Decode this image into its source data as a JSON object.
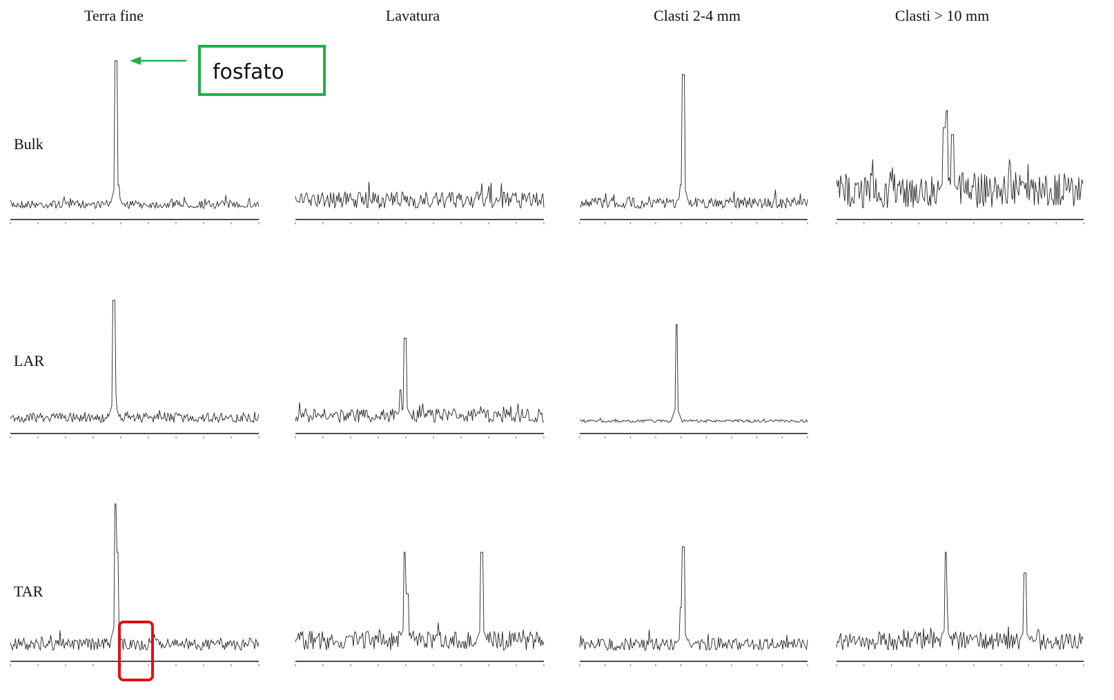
{
  "columns": [
    "Terra fine",
    "Lavatura",
    "Clasti 2-4 mm",
    "Clasti > 10 mm"
  ],
  "rows": [
    "Bulk",
    "LAR",
    "TAR"
  ],
  "annotation": "fosfato"
}
